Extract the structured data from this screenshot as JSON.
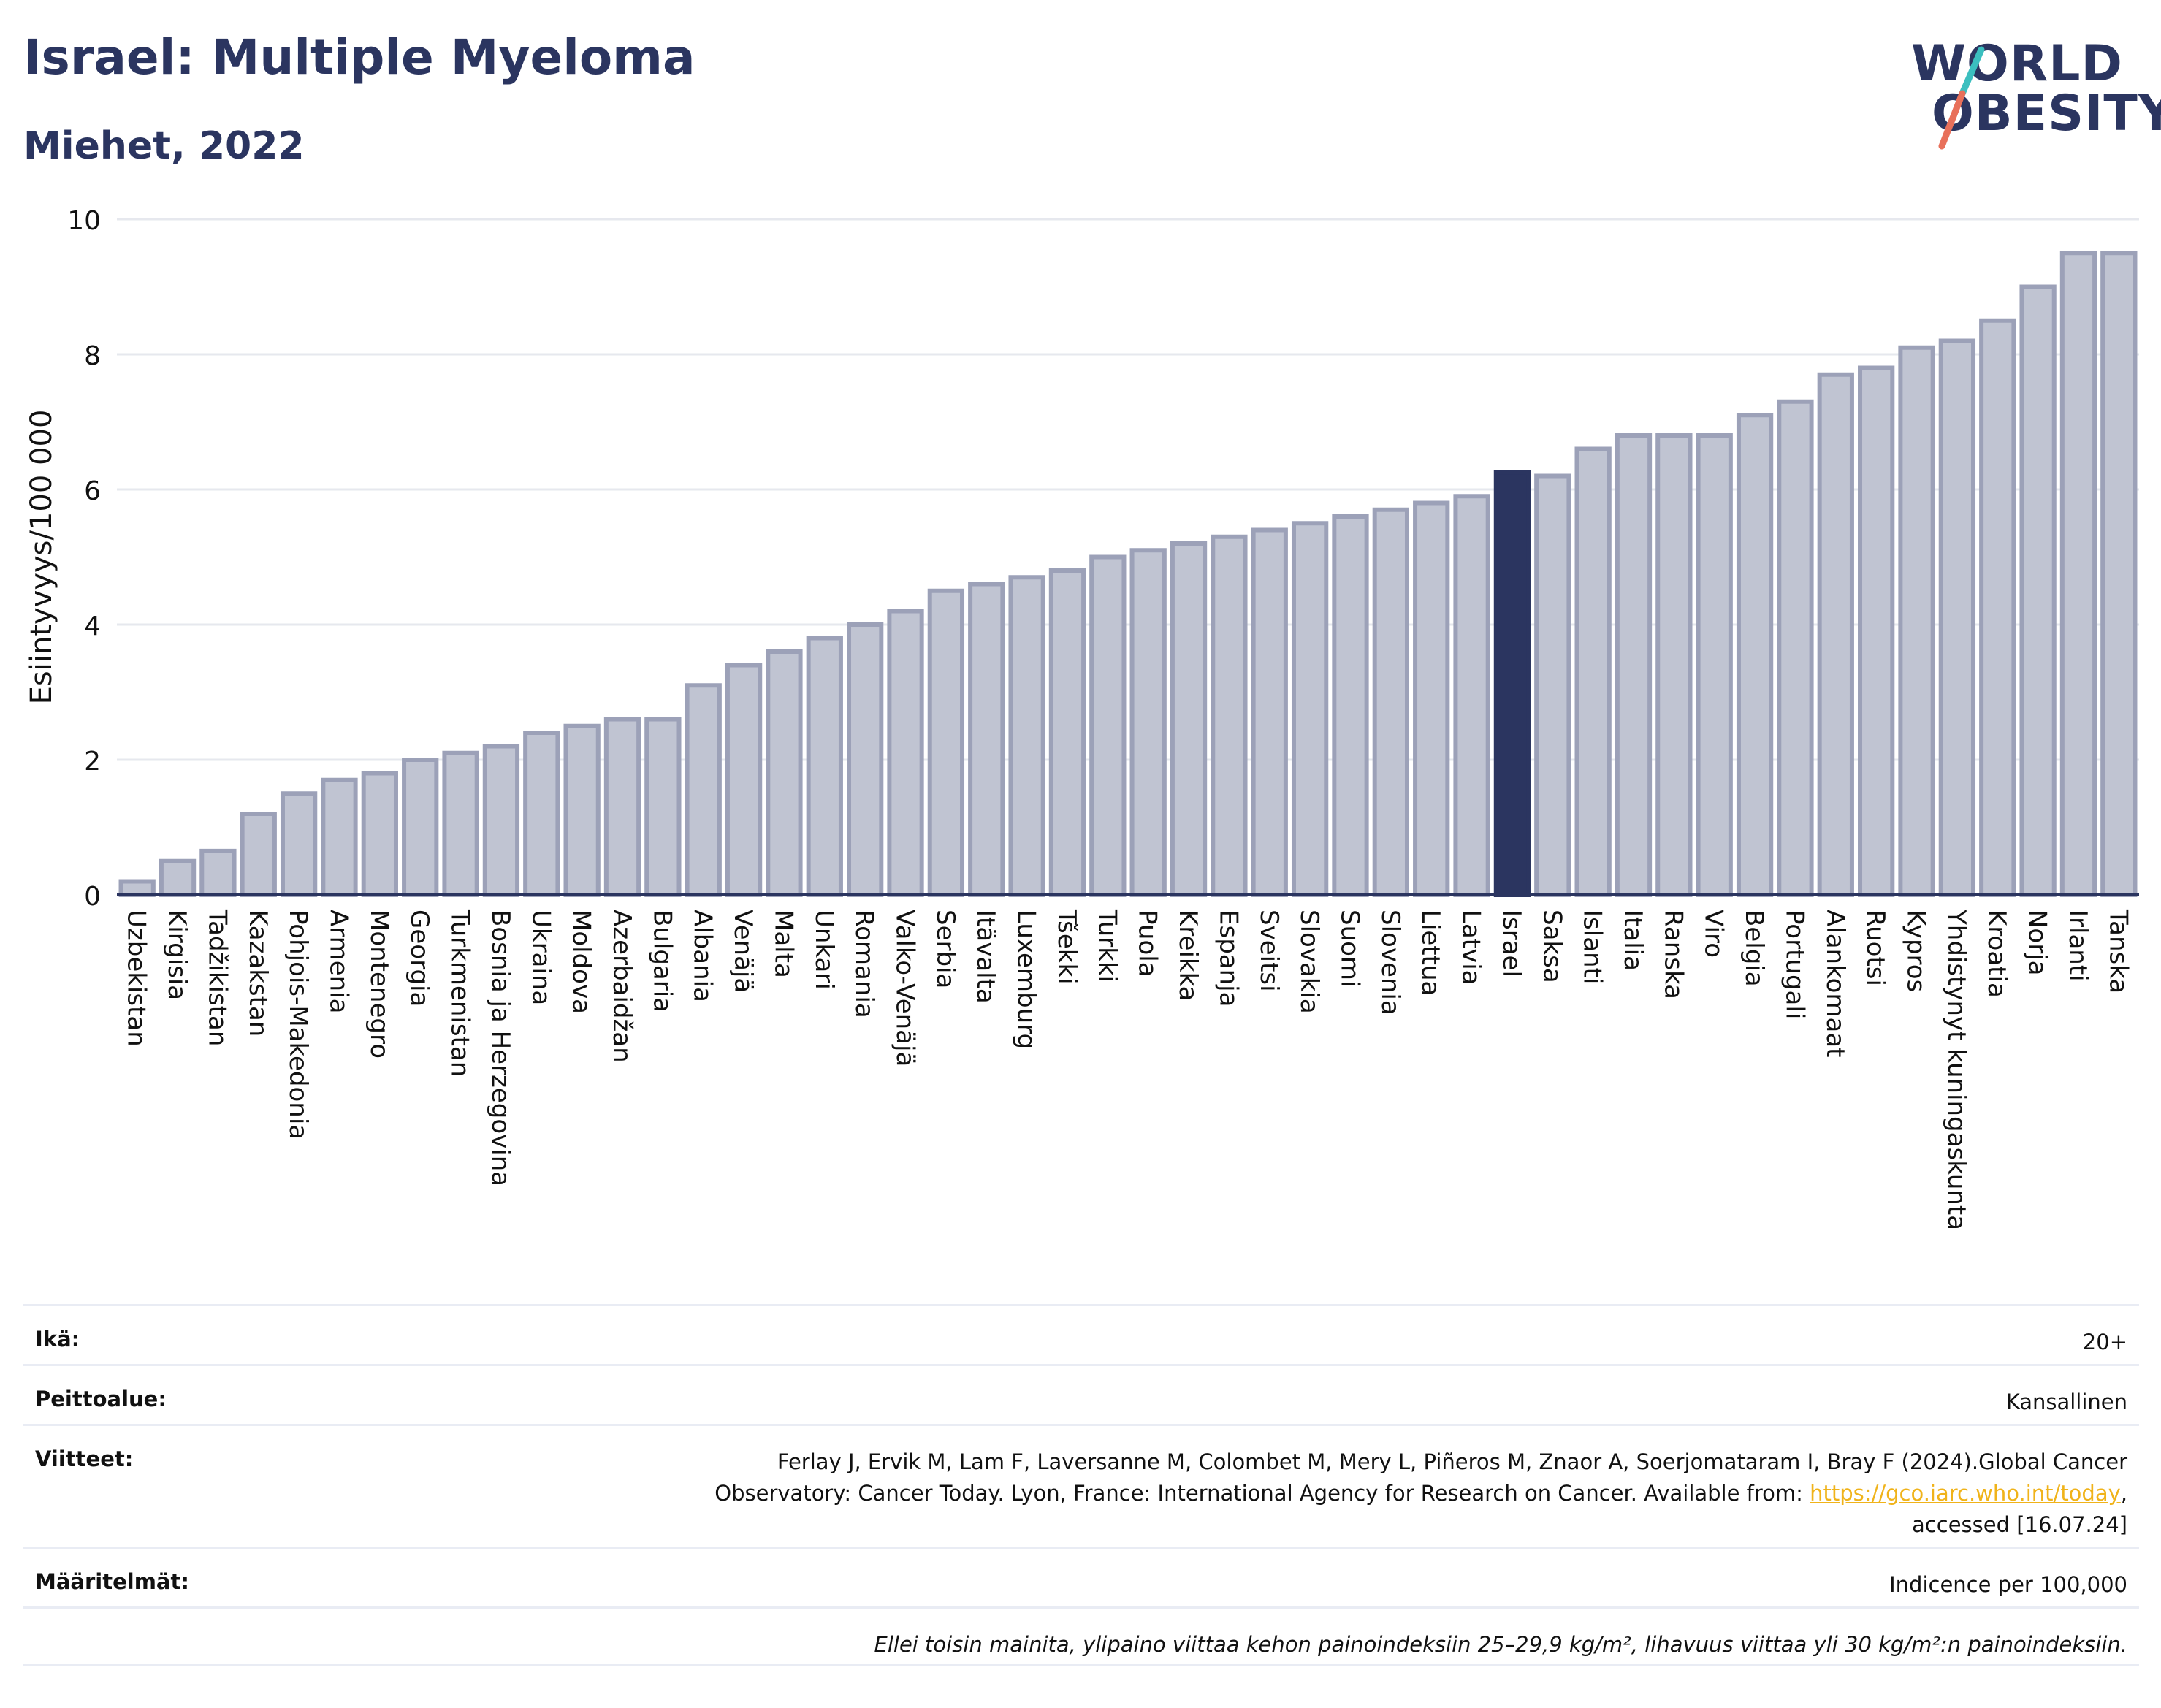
{
  "header": {
    "title": "Israel: Multiple Myeloma",
    "subtitle": "Miehet, 2022"
  },
  "logo": {
    "line1": "WORLD",
    "line2": "OBESITY",
    "colors": {
      "text": "#2b3560",
      "slash_top": "#3bbfbf",
      "slash_bottom": "#e8705a"
    }
  },
  "chart_data": {
    "type": "bar",
    "ylabel": "Esiintyvyys/100 000",
    "xlabel": "",
    "ylim": [
      0,
      10
    ],
    "yticks": [
      0,
      2,
      4,
      6,
      8,
      10
    ],
    "grid": true,
    "highlight": "Israel",
    "colors": {
      "bar": "#c0c4d2",
      "bar_stroke": "#9ca1b8",
      "highlight": "#2b3560"
    },
    "categories": [
      "Uzbekistan",
      "Kirgisia",
      "Tadžikistan",
      "Kazakstan",
      "Pohjois-Makedonia",
      "Armenia",
      "Montenegro",
      "Georgia",
      "Turkmenistan",
      "Bosnia ja Herzegovina",
      "Ukraina",
      "Moldova",
      "Azerbaidžan",
      "Bulgaria",
      "Albania",
      "Venäjä",
      "Malta",
      "Unkari",
      "Romania",
      "Valko-Venäjä",
      "Serbia",
      "Itävalta",
      "Luxemburg",
      "Tšekki",
      "Turkki",
      "Puola",
      "Kreikka",
      "Espanja",
      "Sveitsi",
      "Slovakia",
      "Suomi",
      "Slovenia",
      "Liettua",
      "Latvia",
      "Israel",
      "Saksa",
      "Islanti",
      "Italia",
      "Ranska",
      "Viro",
      "Belgia",
      "Portugali",
      "Alankomaat",
      "Ruotsi",
      "Kypros",
      "Yhdistynyt kuningaskunta",
      "Kroatia",
      "Norja",
      "Irlanti",
      "Tanska"
    ],
    "values": [
      0.2,
      0.5,
      0.65,
      1.2,
      1.5,
      1.7,
      1.8,
      2.0,
      2.1,
      2.2,
      2.4,
      2.5,
      2.6,
      2.6,
      3.1,
      3.4,
      3.6,
      3.8,
      4.0,
      4.2,
      4.5,
      4.6,
      4.7,
      4.8,
      5.0,
      5.1,
      5.2,
      5.3,
      5.4,
      5.5,
      5.6,
      5.7,
      5.8,
      5.9,
      6.25,
      6.2,
      6.6,
      6.8,
      6.8,
      6.8,
      7.1,
      7.3,
      7.7,
      7.8,
      8.1,
      8.2,
      8.5,
      9.0,
      9.5,
      9.5
    ]
  },
  "info": {
    "age": {
      "label": "Ikä:",
      "value": "20+"
    },
    "coverage": {
      "label": "Peittoalue:",
      "value": "Kansallinen"
    },
    "references": {
      "label": "Viitteet:",
      "line1": "Ferlay J, Ervik M, Lam F, Laversanne M, Colombet M, Mery L, Piñeros M, Znaor A, Soerjomataram I, Bray F (2024).Global Cancer",
      "line2_prefix": "Observatory: Cancer Today. Lyon, France: International Agency for Research on Cancer. Available from: ",
      "link": "https://gco.iarc.who.int/today",
      "line2_suffix": ",",
      "line3": "accessed [16.07.24]"
    },
    "definitions": {
      "label": "Määritelmät:",
      "value": "Indicence per 100,000"
    },
    "note": "Ellei toisin mainita, ylipaino viittaa kehon painoindeksiin 25–29,9 kg/m², lihavuus viittaa yli 30 kg/m²:n painoindeksiin."
  }
}
